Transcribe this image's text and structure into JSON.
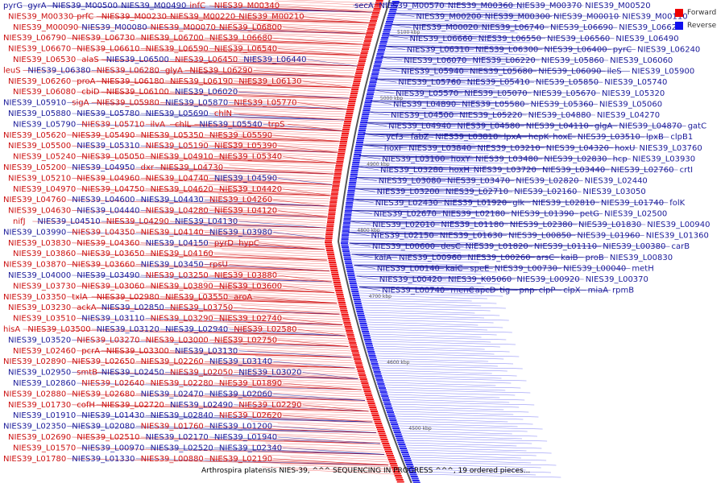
{
  "legend": {
    "forward_label": "Forward",
    "reverse_label": "Reverse",
    "forward_color": "#ee0000",
    "reverse_color": "#1111ee"
  },
  "caption": "Arthrospira platensis NIES-39, ^^^ SEQUENCING IN PROGRESS ^^^, 19 ordered pieces...",
  "scale_labels": [
    "5100 kbp",
    "5000 kbp",
    "4900 kbp",
    "4800 kbp",
    "4700 kbp",
    "4600 kbp",
    "4500 kbp"
  ],
  "left_genes": [
    {
      "t": "pyrG",
      "s": "r"
    },
    {
      "t": "gyrA",
      "s": "r"
    },
    {
      "t": "NIES39_M00500",
      "s": "r"
    },
    {
      "t": "NIES39_M00490",
      "s": "r"
    },
    {
      "t": "infC",
      "s": "f"
    },
    {
      "t": "NIES39_M00340",
      "s": "f"
    },
    {
      "t": "NIES39_M00330",
      "s": "f"
    },
    {
      "t": "prfC",
      "s": "f"
    },
    {
      "t": "NIES39_M00230",
      "s": "f"
    },
    {
      "t": "NIES39_M00220",
      "s": "f"
    },
    {
      "t": "NIES39_M00210",
      "s": "f"
    },
    {
      "t": "NIES39_M00090",
      "s": "f"
    },
    {
      "t": "NIES39_M00080",
      "s": "r"
    },
    {
      "t": "NIES39_M00070",
      "s": "f"
    },
    {
      "t": "NIES39_L06800",
      "s": "f"
    },
    {
      "t": "NIES39_L06790",
      "s": "f"
    },
    {
      "t": "NIES39_L06730",
      "s": "f"
    },
    {
      "t": "NIES39_L06700",
      "s": "f"
    },
    {
      "t": "NIES39_L06680",
      "s": "f"
    },
    {
      "t": "NIES39_L06670",
      "s": "f"
    },
    {
      "t": "NIES39_L06610",
      "s": "f"
    },
    {
      "t": "NIES39_L06590",
      "s": "f"
    },
    {
      "t": "NIES39_L06540",
      "s": "f"
    },
    {
      "t": "NIES39_L06530",
      "s": "f"
    },
    {
      "t": "alaS",
      "s": "f"
    },
    {
      "t": "NIES39_L06500",
      "s": "r"
    },
    {
      "t": "NIES39_L06450",
      "s": "f"
    },
    {
      "t": "NIES39_L06440",
      "s": "r"
    },
    {
      "t": "leuS",
      "s": "f"
    },
    {
      "t": "NIES39_L06380",
      "s": "r"
    },
    {
      "t": "NIES39_L06280",
      "s": "f"
    },
    {
      "t": "glyA",
      "s": "f"
    },
    {
      "t": "NIES39_L06290",
      "s": "f"
    },
    {
      "t": "NIES39_L06260",
      "s": "f"
    },
    {
      "t": "proA",
      "s": "f"
    },
    {
      "t": "NIES39_L06180",
      "s": "f"
    },
    {
      "t": "NIES39_L06190",
      "s": "f"
    },
    {
      "t": "NIES39_L06130",
      "s": "f"
    },
    {
      "t": "NIES39_L06080",
      "s": "f"
    },
    {
      "t": "cbiD",
      "s": "f"
    },
    {
      "t": "NIES39_L06100",
      "s": "f"
    },
    {
      "t": "NIES39_L06020",
      "s": "r"
    },
    {
      "t": "NIES39_L05910",
      "s": "r"
    },
    {
      "t": "sigA",
      "s": "f"
    },
    {
      "t": "NIES39_L05980",
      "s": "f"
    },
    {
      "t": "NIES39_L05870",
      "s": "r"
    },
    {
      "t": "NIES39_L05770",
      "s": "f"
    },
    {
      "t": "NIES39_L05880",
      "s": "r"
    },
    {
      "t": "NIES39_L05780",
      "s": "r"
    },
    {
      "t": "NIES39_L05690",
      "s": "r"
    },
    {
      "t": "chlN",
      "s": "f"
    },
    {
      "t": "NIES39_L05790",
      "s": "r"
    },
    {
      "t": "NIES39_L05710",
      "s": "f"
    },
    {
      "t": "ilvA",
      "s": "f"
    },
    {
      "t": "chlL",
      "s": "f"
    },
    {
      "t": "NIES39_L05540",
      "s": "r"
    },
    {
      "t": "trpS",
      "s": "f"
    },
    {
      "t": "NIES39_L05620",
      "s": "f"
    },
    {
      "t": "NIES39_L05490",
      "s": "f"
    },
    {
      "t": "NIES39_L05350",
      "s": "f"
    },
    {
      "t": "NIES39_L05590",
      "s": "f"
    },
    {
      "t": "NIES39_L05500",
      "s": "f"
    },
    {
      "t": "NIES39_L05310",
      "s": "r"
    },
    {
      "t": "NIES39_L05190",
      "s": "f"
    },
    {
      "t": "NIES39_L05390",
      "s": "f"
    },
    {
      "t": "NIES39_L05240",
      "s": "f"
    },
    {
      "t": "NIES39_L05050",
      "s": "f"
    },
    {
      "t": "NIES39_L04910",
      "s": "f"
    },
    {
      "t": "NIES39_L05340",
      "s": "f"
    },
    {
      "t": "NIES39_L05200",
      "s": "f"
    },
    {
      "t": "NIES39_L04950",
      "s": "r"
    },
    {
      "t": "dxr",
      "s": "f"
    },
    {
      "t": "NIES39_L04730",
      "s": "f"
    },
    {
      "t": "NIES39_L05210",
      "s": "f"
    },
    {
      "t": "NIES39_L04960",
      "s": "f"
    },
    {
      "t": "NIES39_L04740",
      "s": "f"
    },
    {
      "t": "NIES39_L04590",
      "s": "r"
    },
    {
      "t": "NIES39_L04970",
      "s": "f"
    },
    {
      "t": "NIES39_L04750",
      "s": "f"
    },
    {
      "t": "NIES39_L04620",
      "s": "f"
    },
    {
      "t": "NIES39_L04420",
      "s": "f"
    },
    {
      "t": "NIES39_L04760",
      "s": "f"
    },
    {
      "t": "NIES39_L04600",
      "s": "r"
    },
    {
      "t": "NIES39_L04430",
      "s": "r"
    },
    {
      "t": "NIES39_L04260",
      "s": "f"
    },
    {
      "t": "NIES39_L04630",
      "s": "f"
    },
    {
      "t": "NIES39_L04440",
      "s": "r"
    },
    {
      "t": "NIES39_L04280",
      "s": "f"
    },
    {
      "t": "NIES39_L04120",
      "s": "f"
    },
    {
      "t": "nifJ",
      "s": "f"
    },
    {
      "t": "NIES39_L04510",
      "s": "r"
    },
    {
      "t": "NIES39_L04290",
      "s": "f"
    },
    {
      "t": "NIES39_L04130",
      "s": "r"
    },
    {
      "t": "NIES39_L03990",
      "s": "r"
    },
    {
      "t": "NIES39_L04350",
      "s": "f"
    },
    {
      "t": "NIES39_L04140",
      "s": "f"
    },
    {
      "t": "NIES39_L03980",
      "s": "r"
    },
    {
      "t": "NIES39_L03830",
      "s": "f"
    },
    {
      "t": "NIES39_L04360",
      "s": "f"
    },
    {
      "t": "NIES39_L04150",
      "s": "r"
    },
    {
      "t": "pyrD",
      "s": "f"
    },
    {
      "t": "hypC",
      "s": "f"
    },
    {
      "t": "NIES39_L03860",
      "s": "f"
    },
    {
      "t": "NIES39_L03650",
      "s": "f"
    },
    {
      "t": "NIES39_L04160",
      "s": "f"
    },
    {
      "t": "NIES39_L03870",
      "s": "f"
    },
    {
      "t": "NIES39_L03660",
      "s": "f"
    },
    {
      "t": "NIES39_L03450",
      "s": "r"
    },
    {
      "t": "rpsU",
      "s": "f"
    },
    {
      "t": "NIES39_L04000",
      "s": "r"
    },
    {
      "t": "NIES39_L03490",
      "s": "r"
    },
    {
      "t": "NIES39_L03250",
      "s": "f"
    },
    {
      "t": "NIES39_L03880",
      "s": "f"
    },
    {
      "t": "NIES39_L03730",
      "s": "f"
    },
    {
      "t": "NIES39_L03060",
      "s": "f"
    },
    {
      "t": "NIES39_L03890",
      "s": "f"
    },
    {
      "t": "NIES39_L03600",
      "s": "f"
    },
    {
      "t": "NIES39_L03350",
      "s": "f"
    },
    {
      "t": "txlA",
      "s": "f"
    },
    {
      "t": "NIES39_L02980",
      "s": "f"
    },
    {
      "t": "NIES39_L03550",
      "s": "f"
    },
    {
      "t": "aroA",
      "s": "f"
    },
    {
      "t": "NIES39_L03230",
      "s": "f"
    },
    {
      "t": "ackA",
      "s": "f"
    },
    {
      "t": "NIES39_L02850",
      "s": "r"
    },
    {
      "t": "NIES39_L03750",
      "s": "f"
    },
    {
      "t": "NIES39_L03510",
      "s": "f"
    },
    {
      "t": "NIES39_L03110",
      "s": "r"
    },
    {
      "t": "NIES39_L03290",
      "s": "f"
    },
    {
      "t": "NIES39_L02740",
      "s": "f"
    },
    {
      "t": "hisA",
      "s": "f"
    },
    {
      "t": "NIES39_L03500",
      "s": "f"
    },
    {
      "t": "NIES39_L03120",
      "s": "r"
    },
    {
      "t": "NIES39_L02940",
      "s": "r"
    },
    {
      "t": "NIES39_L02580",
      "s": "f"
    },
    {
      "t": "NIES39_L03520",
      "s": "r"
    },
    {
      "t": "NIES39_L03270",
      "s": "f"
    },
    {
      "t": "NIES39_L03000",
      "s": "f"
    },
    {
      "t": "NIES39_L02750",
      "s": "f"
    },
    {
      "t": "NIES39_L02460",
      "s": "f"
    },
    {
      "t": "pcrA",
      "s": "f"
    },
    {
      "t": "NIES39_L03300",
      "s": "f"
    },
    {
      "t": "NIES39_L03130",
      "s": "r"
    },
    {
      "t": "NIES39_L02890",
      "s": "f"
    },
    {
      "t": "NIES39_L02650",
      "s": "f"
    },
    {
      "t": "NIES39_L02260",
      "s": "f"
    },
    {
      "t": "NIES39_L03140",
      "s": "r"
    },
    {
      "t": "NIES39_L02950",
      "s": "r"
    },
    {
      "t": "smtB",
      "s": "f"
    },
    {
      "t": "NIES39_L02450",
      "s": "r"
    },
    {
      "t": "NIES39_L02050",
      "s": "f"
    },
    {
      "t": "NIES39_L03020",
      "s": "r"
    },
    {
      "t": "NIES39_L02860",
      "s": "r"
    },
    {
      "t": "NIES39_L02640",
      "s": "f"
    },
    {
      "t": "NIES39_L02280",
      "s": "f"
    },
    {
      "t": "NIES39_L01890",
      "s": "f"
    },
    {
      "t": "NIES39_L02880",
      "s": "f"
    },
    {
      "t": "NIES39_L02680",
      "s": "f"
    },
    {
      "t": "NIES39_L02470",
      "s": "r"
    },
    {
      "t": "NIES39_L02060",
      "s": "r"
    },
    {
      "t": "NIES39_L01730",
      "s": "f"
    },
    {
      "t": "cofH",
      "s": "f"
    },
    {
      "t": "NIES39_L02720",
      "s": "f"
    },
    {
      "t": "NIES39_L02490",
      "s": "r"
    },
    {
      "t": "NIES39_L02290",
      "s": "f"
    },
    {
      "t": "NIES39_L01910",
      "s": "r"
    },
    {
      "t": "NIES39_L01430",
      "s": "r"
    },
    {
      "t": "NIES39_L02840",
      "s": "r"
    },
    {
      "t": "NIES39_L02620",
      "s": "f"
    },
    {
      "t": "NIES39_L02350",
      "s": "r"
    },
    {
      "t": "NIES39_L02080",
      "s": "r"
    },
    {
      "t": "NIES39_L01760",
      "s": "f"
    },
    {
      "t": "NIES39_L01200",
      "s": "r"
    },
    {
      "t": "NIES39_L02690",
      "s": "f"
    },
    {
      "t": "NIES39_L02510",
      "s": "f"
    },
    {
      "t": "NIES39_L02170",
      "s": "r"
    },
    {
      "t": "NIES39_L01940",
      "s": "r"
    },
    {
      "t": "NIES39_L01570",
      "s": "f"
    },
    {
      "t": "NIES39_L00970",
      "s": "r"
    },
    {
      "t": "NIES39_L02520",
      "s": "r"
    },
    {
      "t": "NIES39_L02340",
      "s": "r"
    },
    {
      "t": "NIES39_L01780",
      "s": "f"
    },
    {
      "t": "NIES39_L01330",
      "s": "r"
    },
    {
      "t": "NIES39_L00880",
      "s": "f"
    },
    {
      "t": "NIES39_L02190",
      "s": "f"
    }
  ],
  "right_genes": [
    {
      "t": "secA",
      "s": "r"
    },
    {
      "t": "NIES39_M00570",
      "s": "r"
    },
    {
      "t": "NIES39_M00360",
      "s": "r"
    },
    {
      "t": "NIES39_M00370",
      "s": "r"
    },
    {
      "t": "NIES39_M00520",
      "s": "r"
    },
    {
      "t": "NIES39_M00200",
      "s": "r"
    },
    {
      "t": "NIES39_M00300",
      "s": "r"
    },
    {
      "t": "NIES39_M00010",
      "s": "r"
    },
    {
      "t": "NIES39_M00110",
      "s": "r"
    },
    {
      "t": "NIES39_M00020",
      "s": "r"
    },
    {
      "t": "NIES39_L06740",
      "s": "r"
    },
    {
      "t": "NIES39_L06690",
      "s": "r"
    },
    {
      "t": "NIES39_L06620",
      "s": "r"
    },
    {
      "t": "NIES39_L06660",
      "s": "r"
    },
    {
      "t": "NIES39_L06550",
      "s": "r"
    },
    {
      "t": "NIES39_L06560",
      "s": "r"
    },
    {
      "t": "NIES39_L06490",
      "s": "r"
    },
    {
      "t": "NIES39_L06310",
      "s": "r"
    },
    {
      "t": "NIES39_L06300",
      "s": "r"
    },
    {
      "t": "NIES39_L06400",
      "s": "r"
    },
    {
      "t": "pyrC",
      "s": "r"
    },
    {
      "t": "NIES39_L06240",
      "s": "r"
    },
    {
      "t": "NIES39_L06070",
      "s": "r"
    },
    {
      "t": "NIES39_L06220",
      "s": "r"
    },
    {
      "t": "NIES39_L05860",
      "s": "r"
    },
    {
      "t": "NIES39_L06060",
      "s": "r"
    },
    {
      "t": "NIES39_L05940",
      "s": "r"
    },
    {
      "t": "NIES39_L05680",
      "s": "r"
    },
    {
      "t": "NIES39_L06090",
      "s": "r"
    },
    {
      "t": "ileS",
      "s": "r"
    },
    {
      "t": "NIES39_L05900",
      "s": "r"
    },
    {
      "t": "NIES39_L05760",
      "s": "r"
    },
    {
      "t": "NIES39_L05410",
      "s": "r"
    },
    {
      "t": "NIES39_L05850",
      "s": "r"
    },
    {
      "t": "NIES39_L05740",
      "s": "r"
    },
    {
      "t": "NIES39_L05570",
      "s": "r"
    },
    {
      "t": "NIES39_L05070",
      "s": "r"
    },
    {
      "t": "NIES39_L05670",
      "s": "r"
    },
    {
      "t": "NIES39_L05320",
      "s": "r"
    },
    {
      "t": "NIES39_L04890",
      "s": "r"
    },
    {
      "t": "NIES39_L05580",
      "s": "r"
    },
    {
      "t": "NIES39_L05360",
      "s": "r"
    },
    {
      "t": "NIES39_L05060",
      "s": "r"
    },
    {
      "t": "NIES39_L04500",
      "s": "r"
    },
    {
      "t": "NIES39_L05220",
      "s": "r"
    },
    {
      "t": "NIES39_L04880",
      "s": "r"
    },
    {
      "t": "NIES39_L04270",
      "s": "r"
    },
    {
      "t": "NIES39_L04940",
      "s": "r"
    },
    {
      "t": "NIES39_L04580",
      "s": "r"
    },
    {
      "t": "NIES39_L04110",
      "s": "r"
    },
    {
      "t": "glgA",
      "s": "r"
    },
    {
      "t": "NIES39_L04870",
      "s": "r"
    },
    {
      "t": "gatC",
      "s": "r"
    },
    {
      "t": "ycf3",
      "s": "r"
    },
    {
      "t": "fabZ",
      "s": "r"
    },
    {
      "t": "NIES39_L03810",
      "s": "r"
    },
    {
      "t": "lpxA",
      "s": "r"
    },
    {
      "t": "hepK",
      "s": "r"
    },
    {
      "t": "hoxE",
      "s": "r"
    },
    {
      "t": "NIES39_L03510",
      "s": "r"
    },
    {
      "t": "lpxB",
      "s": "r"
    },
    {
      "t": "clpB1",
      "s": "r"
    },
    {
      "t": "hoxF",
      "s": "r"
    },
    {
      "t": "NIES39_L03840",
      "s": "r"
    },
    {
      "t": "NIES39_L03210",
      "s": "r"
    },
    {
      "t": "NIES39_L04320",
      "s": "r"
    },
    {
      "t": "hoxU",
      "s": "r"
    },
    {
      "t": "NIES39_L03760",
      "s": "r"
    },
    {
      "t": "NIES39_L03100",
      "s": "r"
    },
    {
      "t": "hoxY",
      "s": "r"
    },
    {
      "t": "NIES39_L03480",
      "s": "r"
    },
    {
      "t": "NIES39_L02830",
      "s": "r"
    },
    {
      "t": "hcp",
      "s": "r"
    },
    {
      "t": "NIES39_L03930",
      "s": "r"
    },
    {
      "t": "NIES39_L03280",
      "s": "r"
    },
    {
      "t": "hoxH",
      "s": "r"
    },
    {
      "t": "NIES39_L03720",
      "s": "r"
    },
    {
      "t": "NIES39_L03440",
      "s": "r"
    },
    {
      "t": "NIES39_L02760",
      "s": "r"
    },
    {
      "t": "crtI",
      "s": "r"
    },
    {
      "t": "NIES39_L03080",
      "s": "r"
    },
    {
      "t": "NIES39_L03470",
      "s": "r"
    },
    {
      "t": "NIES39_L02820",
      "s": "r"
    },
    {
      "t": "NIES39_L02440",
      "s": "r"
    },
    {
      "t": "NIES39_L03200",
      "s": "r"
    },
    {
      "t": "NIES39_L02710",
      "s": "r"
    },
    {
      "t": "NIES39_L02160",
      "s": "r"
    },
    {
      "t": "NIES39_L03050",
      "s": "r"
    },
    {
      "t": "NIES39_L02430",
      "s": "r"
    },
    {
      "t": "NIES39_L01920",
      "s": "r"
    },
    {
      "t": "glk",
      "s": "r"
    },
    {
      "t": "NIES39_L02810",
      "s": "r"
    },
    {
      "t": "NIES39_L01740",
      "s": "r"
    },
    {
      "t": "folK",
      "s": "r"
    },
    {
      "t": "NIES39_L02670",
      "s": "r"
    },
    {
      "t": "NIES39_L02180",
      "s": "r"
    },
    {
      "t": "NIES39_L01390",
      "s": "r"
    },
    {
      "t": "petG",
      "s": "r"
    },
    {
      "t": "NIES39_L02500",
      "s": "r"
    },
    {
      "t": "NIES39_L02010",
      "s": "r"
    },
    {
      "t": "NIES39_L01180",
      "s": "r"
    },
    {
      "t": "NIES39_L02380",
      "s": "r"
    },
    {
      "t": "NIES39_L01830",
      "s": "r"
    },
    {
      "t": "NIES39_L00940",
      "s": "r"
    },
    {
      "t": "NIES39_L02150",
      "s": "r"
    },
    {
      "t": "NIES39_L01630",
      "s": "r"
    },
    {
      "t": "NIES39_L00850",
      "s": "r"
    },
    {
      "t": "NIES39_L01960",
      "s": "r"
    },
    {
      "t": "NIES39_L01360",
      "s": "r"
    },
    {
      "t": "NIES39_L00600",
      "s": "r"
    },
    {
      "t": "desC",
      "s": "r"
    },
    {
      "t": "NIES39_L01820",
      "s": "r"
    },
    {
      "t": "NIES39_L01110",
      "s": "r"
    },
    {
      "t": "NIES39_L00380",
      "s": "r"
    },
    {
      "t": "carB",
      "s": "r"
    },
    {
      "t": "kaiA",
      "s": "r"
    },
    {
      "t": "NIES39_L00960",
      "s": "r"
    },
    {
      "t": "NIES39_L00260",
      "s": "r"
    },
    {
      "t": "arsC",
      "s": "r"
    },
    {
      "t": "kaiB",
      "s": "r"
    },
    {
      "t": "proB",
      "s": "r"
    },
    {
      "t": "NIES39_L00830",
      "s": "r"
    },
    {
      "t": "NIES39_L00140",
      "s": "r"
    },
    {
      "t": "kaiC",
      "s": "r"
    },
    {
      "t": "speE",
      "s": "r"
    },
    {
      "t": "NIES39_L00730",
      "s": "r"
    },
    {
      "t": "NIES39_L00040",
      "s": "r"
    },
    {
      "t": "metH",
      "s": "r"
    },
    {
      "t": "NIES39_L00420",
      "s": "r"
    },
    {
      "t": "NIES39_K05060",
      "s": "r"
    },
    {
      "t": "NIES39_L00920",
      "s": "r"
    },
    {
      "t": "NIES39_L00370",
      "s": "r"
    },
    {
      "t": "NIES39_L00740",
      "s": "r"
    },
    {
      "t": "menC",
      "s": "r"
    },
    {
      "t": "apcD",
      "s": "r"
    },
    {
      "t": "tig",
      "s": "r"
    },
    {
      "t": "pnp",
      "s": "r"
    },
    {
      "t": "clpP",
      "s": "r"
    },
    {
      "t": "clpX",
      "s": "r"
    },
    {
      "t": "miaA",
      "s": "r"
    },
    {
      "t": "rpmB",
      "s": "r"
    }
  ]
}
